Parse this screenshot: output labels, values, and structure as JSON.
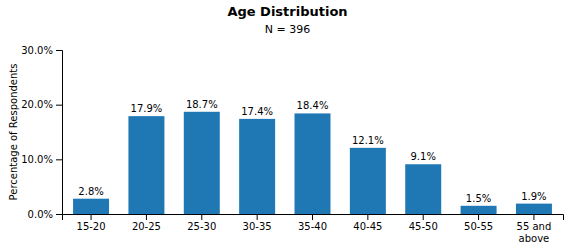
{
  "chart_data": {
    "type": "bar",
    "title": "Age Distribution",
    "subtitle": "N = 396",
    "categories": [
      "15-20",
      "20-25",
      "25-30",
      "30-35",
      "35-40",
      "40-45",
      "45-50",
      "50-55",
      "55 and\nabove"
    ],
    "values": [
      2.8,
      17.9,
      18.7,
      17.4,
      18.4,
      12.1,
      9.1,
      1.5,
      1.9
    ],
    "value_labels": [
      "2.8%",
      "17.9%",
      "18.7%",
      "17.4%",
      "18.4%",
      "12.1%",
      "9.1%",
      "1.5%",
      "1.9%"
    ],
    "data_labels": true,
    "ylabel": "Percentage of Respondents",
    "ylim": [
      0,
      30
    ],
    "yticks": [
      {
        "value": 0,
        "label": "0.0%"
      },
      {
        "value": 10,
        "label": "10.0%"
      },
      {
        "value": 20,
        "label": "20.0%"
      },
      {
        "value": 30,
        "label": "30.0%"
      }
    ],
    "grid": false
  }
}
